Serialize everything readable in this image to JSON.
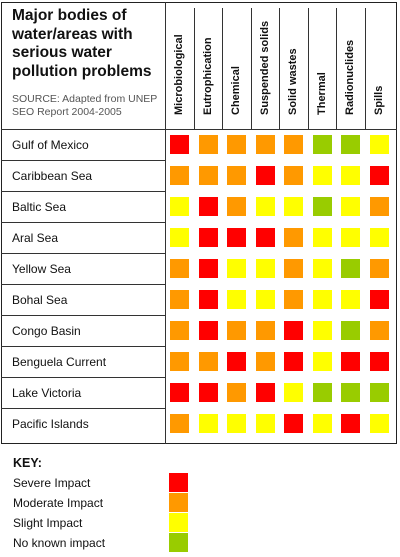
{
  "title": "Major bodies of water/areas with serious water pollution problems",
  "source": "SOURCE: Adapted from UNEP SEO Report 2004-2005",
  "colors": {
    "severe": "#ff0000",
    "moderate": "#ff9900",
    "slight": "#ffff00",
    "none": "#99cc00"
  },
  "chart_data": {
    "type": "heatmap",
    "title": "Major bodies of water/areas with serious water pollution problems",
    "columns": [
      "Microbiological",
      "Eutrophication",
      "Chemical",
      "Suspended solids",
      "Solid wastes",
      "Thermal",
      "Radionuclides",
      "Spills"
    ],
    "rows": [
      "Gulf of Mexico",
      "Caribbean Sea",
      "Baltic Sea",
      "Aral Sea",
      "Yellow Sea",
      "Bohal Sea",
      "Congo Basin",
      "Benguela Current",
      "Lake Victoria",
      "Pacific Islands"
    ],
    "values": [
      [
        "severe",
        "moderate",
        "moderate",
        "moderate",
        "moderate",
        "none",
        "none",
        "slight"
      ],
      [
        "moderate",
        "moderate",
        "moderate",
        "severe",
        "moderate",
        "slight",
        "slight",
        "severe"
      ],
      [
        "slight",
        "severe",
        "moderate",
        "slight",
        "slight",
        "none",
        "slight",
        "moderate"
      ],
      [
        "slight",
        "severe",
        "severe",
        "severe",
        "moderate",
        "slight",
        "slight",
        "slight"
      ],
      [
        "moderate",
        "severe",
        "slight",
        "slight",
        "moderate",
        "slight",
        "none",
        "moderate"
      ],
      [
        "moderate",
        "severe",
        "slight",
        "slight",
        "moderate",
        "slight",
        "slight",
        "severe"
      ],
      [
        "moderate",
        "severe",
        "moderate",
        "moderate",
        "severe",
        "slight",
        "none",
        "moderate"
      ],
      [
        "moderate",
        "moderate",
        "severe",
        "moderate",
        "severe",
        "slight",
        "severe",
        "severe"
      ],
      [
        "severe",
        "severe",
        "moderate",
        "severe",
        "slight",
        "none",
        "none",
        "none"
      ],
      [
        "moderate",
        "slight",
        "slight",
        "slight",
        "severe",
        "slight",
        "severe",
        "slight"
      ]
    ],
    "legend": [
      {
        "key": "severe",
        "label": "Severe Impact"
      },
      {
        "key": "moderate",
        "label": "Moderate Impact"
      },
      {
        "key": "slight",
        "label": "Slight Impact"
      },
      {
        "key": "none",
        "label": "No known impact"
      }
    ],
    "legend_title": "KEY:"
  }
}
